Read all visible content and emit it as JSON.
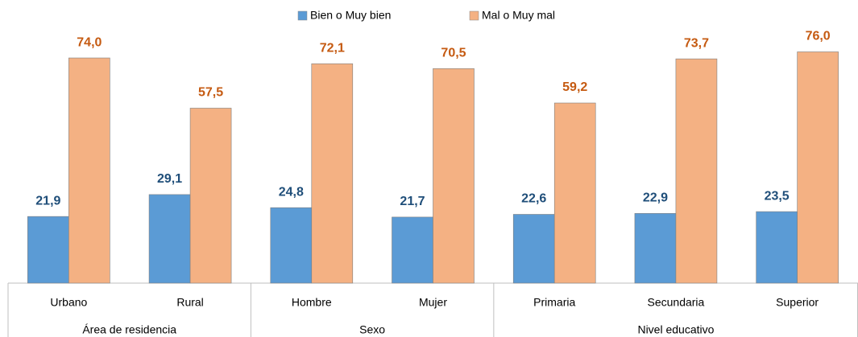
{
  "chart_data": {
    "type": "bar",
    "groups": [
      {
        "label": "Área de residencia",
        "categories": [
          "Urbano",
          "Rural"
        ]
      },
      {
        "label": "Sexo",
        "categories": [
          "Hombre",
          "Mujer"
        ]
      },
      {
        "label": "Nivel educativo",
        "categories": [
          "Primaria",
          "Secundaria",
          "Superior"
        ]
      }
    ],
    "series": [
      {
        "name": "Bien o Muy bien",
        "color": "#5b9bd5",
        "label_color": "#1f4e79",
        "values": [
          21.9,
          29.1,
          24.8,
          21.7,
          22.6,
          22.9,
          23.5
        ],
        "value_labels": [
          "21,9",
          "29,1",
          "24,8",
          "21,7",
          "22,6",
          "22,9",
          "23,5"
        ]
      },
      {
        "name": "Mal o Muy mal",
        "color": "#f4b183",
        "label_color": "#c55a11",
        "values": [
          74.0,
          57.5,
          72.1,
          70.5,
          59.2,
          73.7,
          76.0
        ],
        "value_labels": [
          "74,0",
          "57,5",
          "72,1",
          "70,5",
          "59,2",
          "73,7",
          "76,0"
        ]
      }
    ],
    "ylim": [
      0,
      90
    ]
  }
}
